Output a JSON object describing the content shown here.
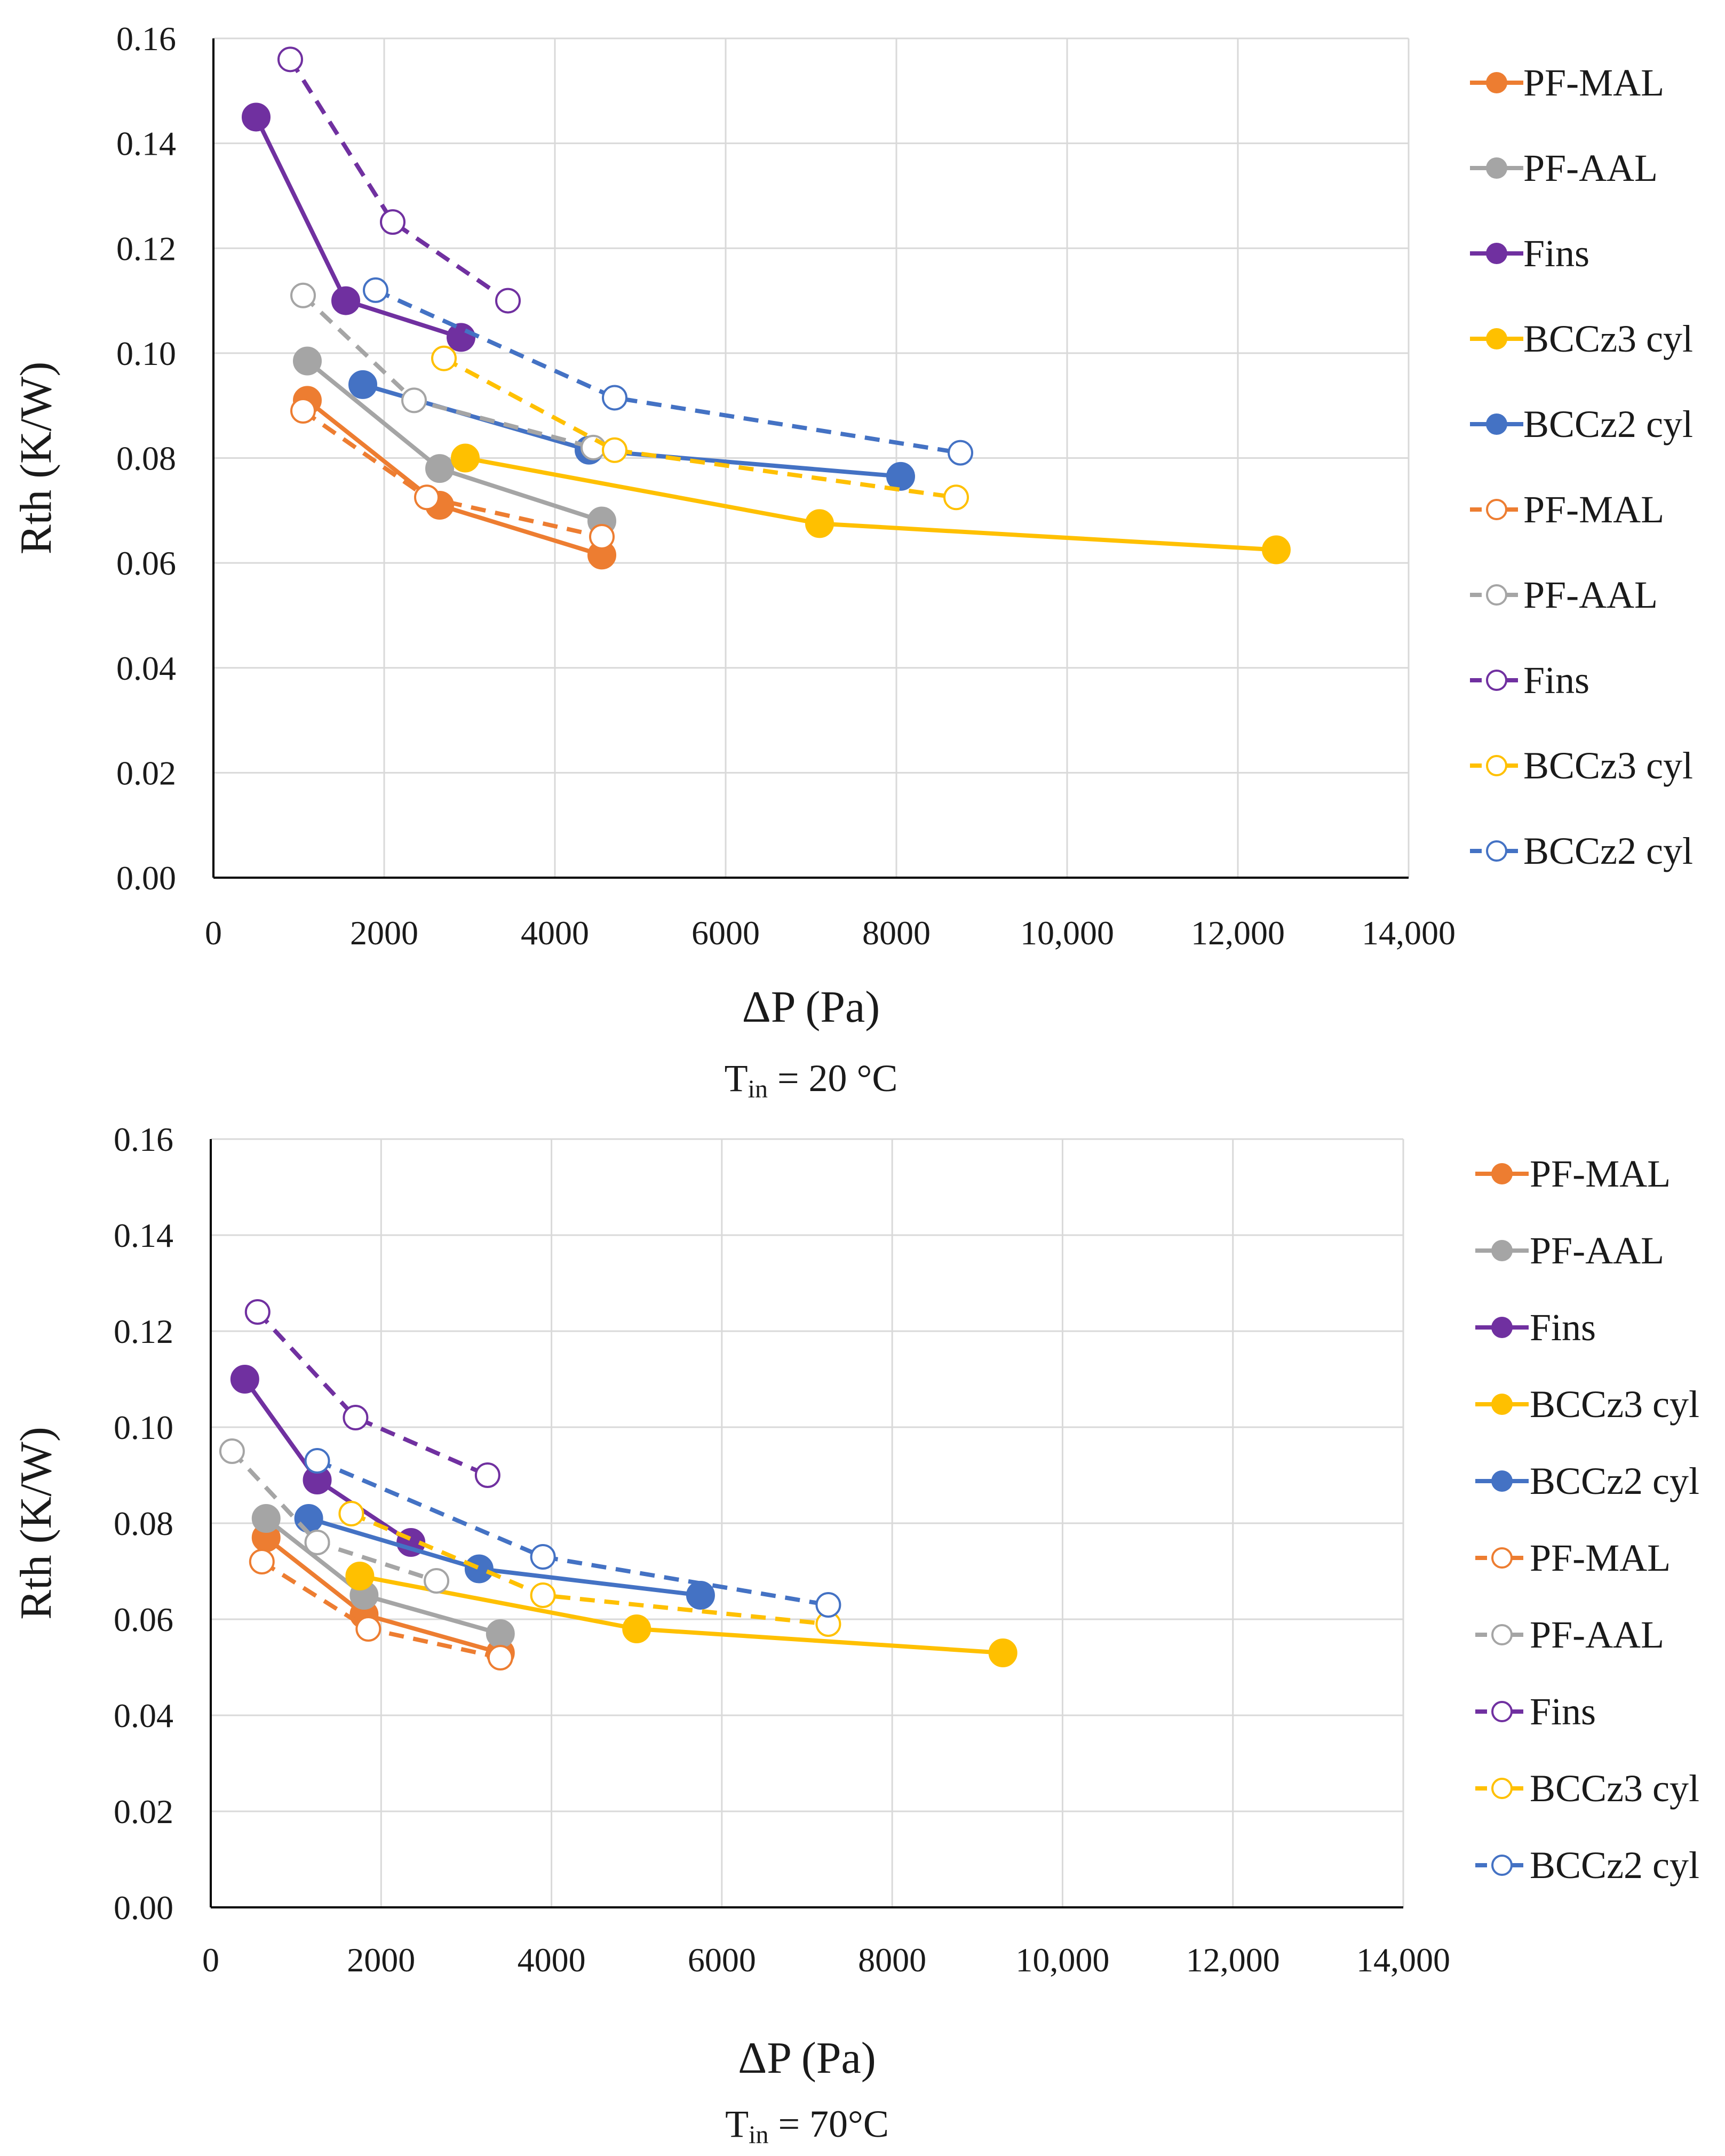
{
  "colors": {
    "PF-MAL": "#ed7d31",
    "PF-AAL": "#a5a5a5",
    "Fins": "#7030a0",
    "BCCz3 cyl": "#ffc000",
    "BCCz2 cyl": "#4472c4",
    "grid": "#d9d9d9",
    "axis": "#000000"
  },
  "chart_data": [
    {
      "type": "line",
      "caption": {
        "main": "T",
        "sub": "in",
        "rest": " = 20 °C"
      },
      "xlabel": "ΔP (Pa)",
      "ylabel": "Rth (K/W)",
      "xlim": [
        0,
        14000
      ],
      "ylim": [
        0,
        0.16
      ],
      "grid": true,
      "legend_position": "right",
      "xticks": [
        "0",
        "2000",
        "4000",
        "6000",
        "8000",
        "10,000",
        "12,000",
        "14,000"
      ],
      "yticks": [
        "0.00",
        "0.02",
        "0.04",
        "0.06",
        "0.08",
        "0.10",
        "0.12",
        "0.14",
        "0.16"
      ],
      "series": [
        {
          "name": "PF-MAL",
          "style": "solid",
          "x": [
            1100,
            2650,
            4550
          ],
          "y": [
            0.091,
            0.071,
            0.0615
          ]
        },
        {
          "name": "PF-AAL",
          "style": "solid",
          "x": [
            1100,
            2650,
            4550
          ],
          "y": [
            0.0985,
            0.078,
            0.068
          ]
        },
        {
          "name": "Fins",
          "style": "solid",
          "x": [
            500,
            1550,
            2900
          ],
          "y": [
            0.145,
            0.11,
            0.103
          ]
        },
        {
          "name": "BCCz3 cyl",
          "style": "solid",
          "x": [
            2950,
            7100,
            12450
          ],
          "y": [
            0.08,
            0.0675,
            0.0625
          ]
        },
        {
          "name": "BCCz2 cyl",
          "style": "solid",
          "x": [
            1750,
            4400,
            8050
          ],
          "y": [
            0.094,
            0.0815,
            0.0765
          ]
        },
        {
          "name": "PF-MAL",
          "style": "dashed",
          "x": [
            1050,
            2500,
            4550
          ],
          "y": [
            0.089,
            0.0725,
            0.065
          ]
        },
        {
          "name": "PF-AAL",
          "style": "dashed",
          "x": [
            1050,
            2350,
            4450
          ],
          "y": [
            0.111,
            0.091,
            0.082
          ]
        },
        {
          "name": "Fins",
          "style": "dashed",
          "x": [
            900,
            2100,
            3450
          ],
          "y": [
            0.156,
            0.125,
            0.11
          ]
        },
        {
          "name": "BCCz3 cyl",
          "style": "dashed",
          "x": [
            2700,
            4700,
            8700
          ],
          "y": [
            0.099,
            0.0815,
            0.0725
          ]
        },
        {
          "name": "BCCz2 cyl",
          "style": "dashed",
          "x": [
            1900,
            4700,
            8750
          ],
          "y": [
            0.112,
            0.0915,
            0.081
          ]
        }
      ]
    },
    {
      "type": "line",
      "caption": {
        "main": "T",
        "sub": "in",
        "rest": " = 70°C"
      },
      "xlabel": "ΔP (Pa)",
      "ylabel": "Rth (K/W)",
      "xlim": [
        0,
        14000
      ],
      "ylim": [
        0,
        0.16
      ],
      "grid": true,
      "legend_position": "right",
      "xticks": [
        "0",
        "2000",
        "4000",
        "6000",
        "8000",
        "10,000",
        "12,000",
        "14,000"
      ],
      "yticks": [
        "0.00",
        "0.02",
        "0.04",
        "0.06",
        "0.08",
        "0.10",
        "0.12",
        "0.14",
        "0.16"
      ],
      "series": [
        {
          "name": "PF-MAL",
          "style": "solid",
          "x": [
            650,
            1800,
            3400
          ],
          "y": [
            0.077,
            0.061,
            0.053
          ]
        },
        {
          "name": "PF-AAL",
          "style": "solid",
          "x": [
            650,
            1800,
            3400
          ],
          "y": [
            0.081,
            0.065,
            0.057
          ]
        },
        {
          "name": "Fins",
          "style": "solid",
          "x": [
            400,
            1250,
            2350
          ],
          "y": [
            0.11,
            0.089,
            0.076
          ]
        },
        {
          "name": "BCCz3 cyl",
          "style": "solid",
          "x": [
            1750,
            5000,
            9300
          ],
          "y": [
            0.069,
            0.058,
            0.053
          ]
        },
        {
          "name": "BCCz2 cyl",
          "style": "solid",
          "x": [
            1150,
            3150,
            5750
          ],
          "y": [
            0.081,
            0.0705,
            0.065
          ]
        },
        {
          "name": "PF-MAL",
          "style": "dashed",
          "x": [
            600,
            1850,
            3400
          ],
          "y": [
            0.072,
            0.058,
            0.052
          ]
        },
        {
          "name": "PF-AAL",
          "style": "dashed",
          "x": [
            250,
            1250,
            2650
          ],
          "y": [
            0.095,
            0.076,
            0.068
          ]
        },
        {
          "name": "Fins",
          "style": "dashed",
          "x": [
            550,
            1700,
            3250
          ],
          "y": [
            0.124,
            0.102,
            0.09
          ]
        },
        {
          "name": "BCCz3 cyl",
          "style": "dashed",
          "x": [
            1650,
            3900,
            7250
          ],
          "y": [
            0.082,
            0.065,
            0.059
          ]
        },
        {
          "name": "BCCz2 cyl",
          "style": "dashed",
          "x": [
            1250,
            3900,
            7250
          ],
          "y": [
            0.093,
            0.073,
            0.063
          ]
        }
      ]
    }
  ]
}
